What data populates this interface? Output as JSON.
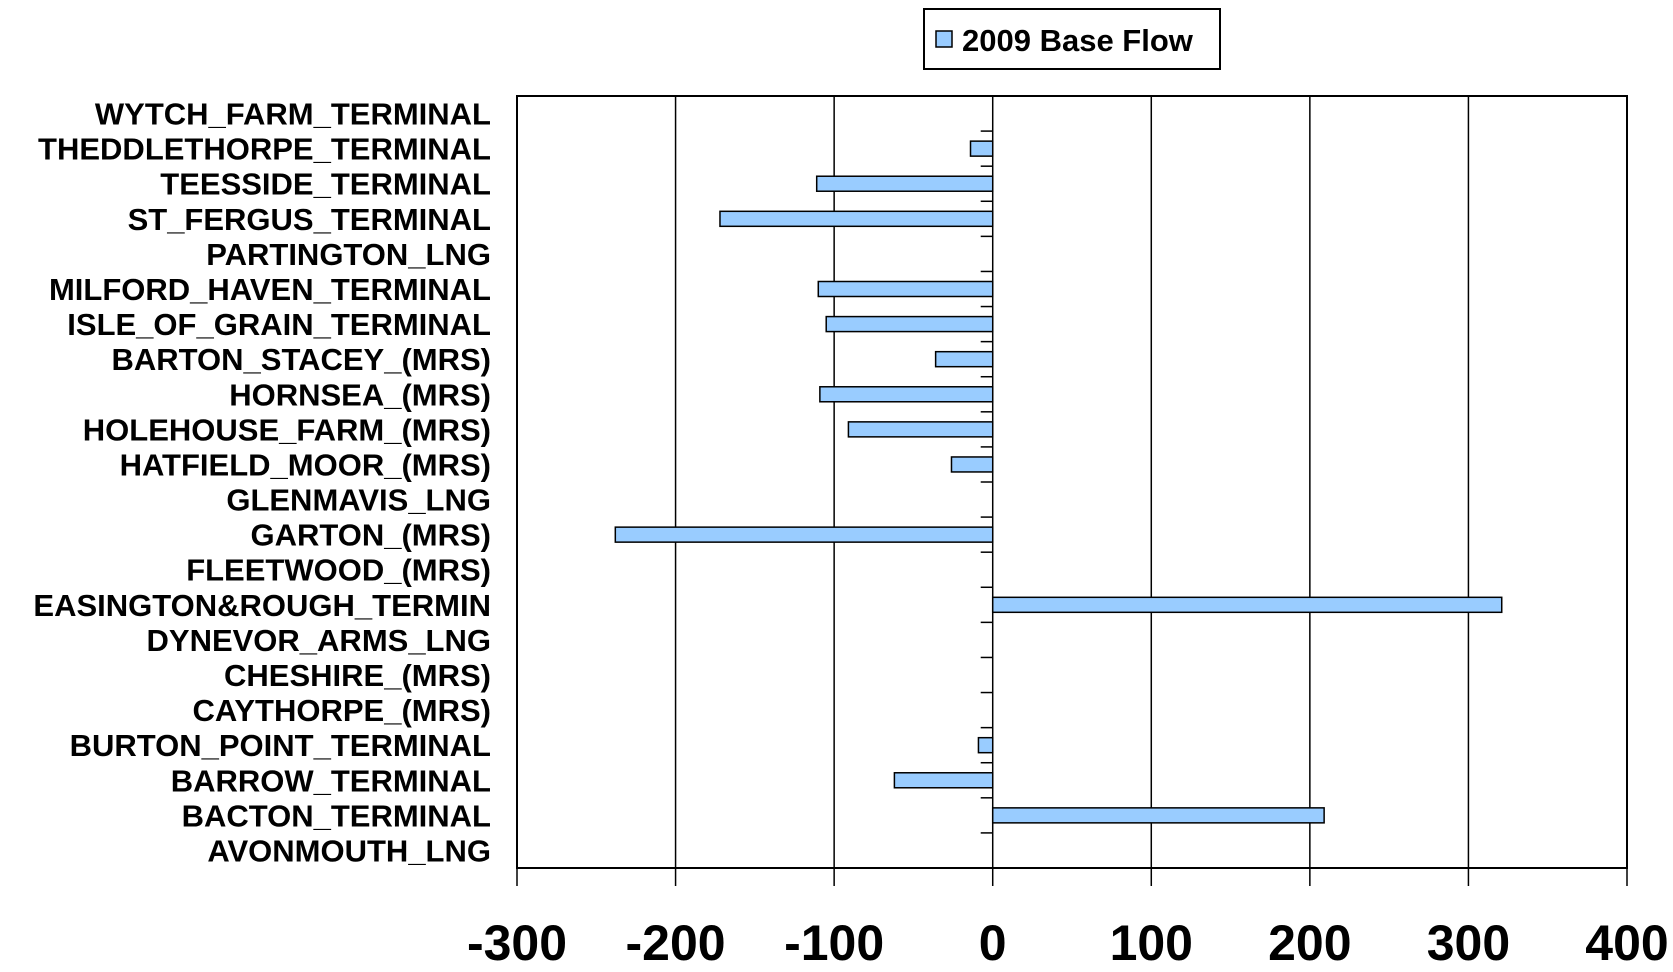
{
  "chart_data": {
    "type": "bar",
    "orientation": "horizontal",
    "categories": [
      "WYTCH_FARM_TERMINAL",
      "THEDDLETHORPE_TERMINAL",
      "TEESSIDE_TERMINAL",
      "ST_FERGUS_TERMINAL",
      "PARTINGTON_LNG",
      "MILFORD_HAVEN_TERMINAL",
      "ISLE_OF_GRAIN_TERMINAL",
      "BARTON_STACEY_(MRS)",
      "HORNSEA_(MRS)",
      "HOLEHOUSE_FARM_(MRS)",
      "HATFIELD_MOOR_(MRS)",
      "GLENMAVIS_LNG",
      "GARTON_(MRS)",
      "FLEETWOOD_(MRS)",
      "EASINGTON&ROUGH_TERMIN",
      "DYNEVOR_ARMS_LNG",
      "CHESHIRE_(MRS)",
      "CAYTHORPE_(MRS)",
      "BURTON_POINT_TERMINAL",
      "BARROW_TERMINAL",
      "BACTON_TERMINAL",
      "AVONMOUTH_LNG"
    ],
    "series": [
      {
        "name": "2009 Base Flow",
        "color": "#99ccff",
        "values": [
          0,
          -14,
          -111,
          -172,
          0,
          -110,
          -105,
          -36,
          -109,
          -91,
          -26,
          0,
          -238,
          0,
          321,
          0,
          0,
          0,
          -9,
          -62,
          209,
          0
        ]
      }
    ],
    "xlim": [
      -300,
      400
    ],
    "xticks": [
      -300,
      -200,
      -100,
      0,
      100,
      200,
      300,
      400
    ],
    "xtick_labels": [
      "-300",
      "-200",
      "-100",
      "0",
      "100",
      "200",
      "300",
      "400"
    ],
    "grid": "vertical",
    "legend_position": "top-center",
    "title": "",
    "xlabel": "",
    "ylabel": ""
  }
}
